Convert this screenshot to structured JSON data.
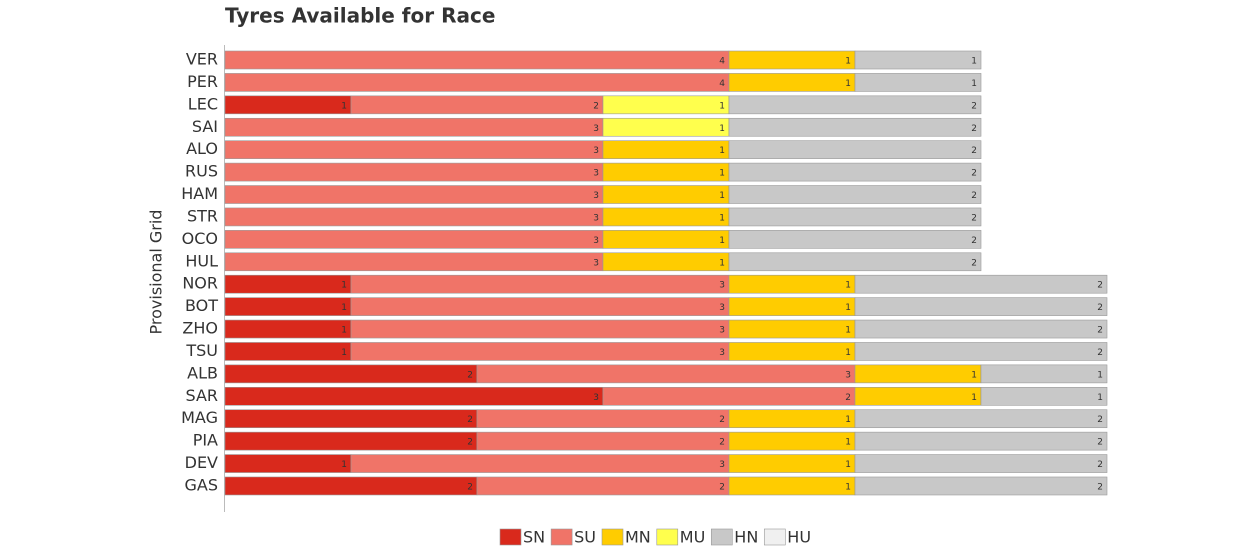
{
  "chart_data": {
    "type": "stacked-barh",
    "title": "Tyres Available for Race",
    "ylabel": "Provisional Grid",
    "categories": [
      "VER",
      "PER",
      "LEC",
      "SAI",
      "ALO",
      "RUS",
      "HAM",
      "STR",
      "OCO",
      "HUL",
      "NOR",
      "BOT",
      "ZHO",
      "TSU",
      "ALB",
      "SAR",
      "MAG",
      "PIA",
      "DEV",
      "GAS"
    ],
    "xlim": [
      0,
      7
    ],
    "series": [
      {
        "name": "SN",
        "color": "#d9291c",
        "values": [
          0,
          0,
          1,
          0,
          0,
          0,
          0,
          0,
          0,
          0,
          1,
          1,
          1,
          1,
          2,
          3,
          2,
          2,
          1,
          2
        ]
      },
      {
        "name": "SU",
        "color": "#f07468",
        "values": [
          4,
          4,
          2,
          3,
          3,
          3,
          3,
          3,
          3,
          3,
          3,
          3,
          3,
          3,
          3,
          2,
          2,
          2,
          3,
          2
        ]
      },
      {
        "name": "MN",
        "color": "#ffcc00",
        "values": [
          1,
          1,
          0,
          0,
          1,
          1,
          1,
          1,
          1,
          1,
          1,
          1,
          1,
          1,
          1,
          1,
          1,
          1,
          1,
          1
        ]
      },
      {
        "name": "MU",
        "color": "#ffff4d",
        "values": [
          0,
          0,
          1,
          1,
          0,
          0,
          0,
          0,
          0,
          0,
          0,
          0,
          0,
          0,
          0,
          0,
          0,
          0,
          0,
          0
        ]
      },
      {
        "name": "HN",
        "color": "#c8c8c8",
        "values": [
          1,
          1,
          2,
          2,
          2,
          2,
          2,
          2,
          2,
          2,
          2,
          2,
          2,
          2,
          1,
          1,
          2,
          2,
          2,
          2
        ]
      },
      {
        "name": "HU",
        "color": "#f0f0f0",
        "values": [
          0,
          0,
          0,
          0,
          0,
          0,
          0,
          0,
          0,
          0,
          0,
          0,
          0,
          0,
          0,
          0,
          0,
          0,
          0,
          0
        ]
      }
    ]
  }
}
